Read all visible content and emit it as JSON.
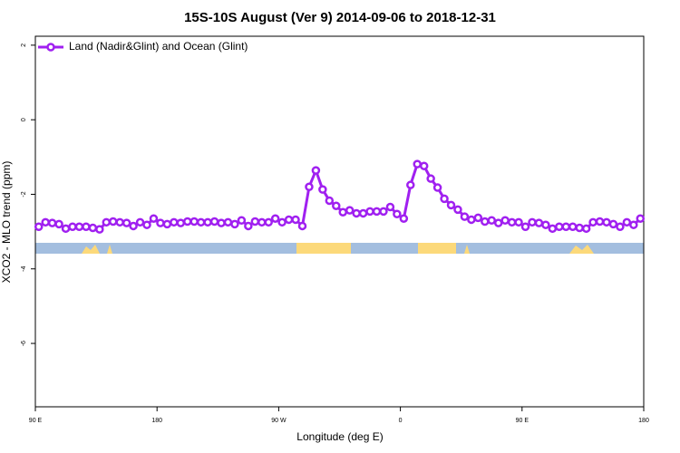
{
  "chart_data": {
    "type": "line",
    "title": "15S-10S August (Ver 9)   2014-09-06 to 2018-12-31",
    "x_label": "Longitude (deg E)",
    "y_label": "XCO2 - MLO trend (ppm)",
    "x": [
      92.5,
      97.5,
      102.5,
      107.5,
      112.5,
      117.5,
      122.5,
      127.5,
      132.5,
      137.5,
      142.5,
      147.5,
      152.5,
      157.5,
      162.5,
      167.5,
      172.5,
      177.5,
      182.5,
      187.5,
      192.5,
      197.5,
      202.5,
      207.5,
      212.5,
      217.5,
      222.5,
      227.5,
      232.5,
      237.5,
      242.5,
      247.5,
      252.5,
      257.5,
      262.5,
      267.5,
      272.5,
      277.5,
      282.5,
      287.5,
      292.5,
      297.5,
      302.5,
      307.5,
      312.5,
      317.5,
      322.5,
      327.5,
      332.5,
      337.5,
      342.5,
      347.5,
      352.5,
      357.5,
      362.5,
      367.5,
      372.5,
      377.5,
      382.5,
      387.5,
      392.5,
      397.5,
      402.5,
      407.5,
      412.5,
      417.5,
      422.5,
      427.5,
      432.5,
      437.5,
      442.5,
      447.5,
      452.5,
      457.5,
      462.5,
      467.5,
      472.5,
      477.5,
      482.5,
      487.5,
      492.5,
      497.5,
      502.5,
      507.5,
      512.5,
      517.5,
      522.5,
      527.5,
      532.5,
      537.5
    ],
    "series": [
      {
        "name": "Land (Nadir&Glint) and Ocean (Glint)",
        "color": "#a020f0",
        "values": [
          -2.87,
          -2.75,
          -2.77,
          -2.8,
          -2.92,
          -2.87,
          -2.87,
          -2.87,
          -2.9,
          -2.94,
          -2.75,
          -2.73,
          -2.75,
          -2.77,
          -2.85,
          -2.75,
          -2.82,
          -2.65,
          -2.77,
          -2.8,
          -2.75,
          -2.77,
          -2.73,
          -2.73,
          -2.75,
          -2.75,
          -2.73,
          -2.77,
          -2.75,
          -2.8,
          -2.7,
          -2.85,
          -2.73,
          -2.75,
          -2.75,
          -2.65,
          -2.75,
          -2.68,
          -2.68,
          -2.85,
          -1.8,
          -1.36,
          -1.87,
          -2.17,
          -2.31,
          -2.48,
          -2.43,
          -2.51,
          -2.51,
          -2.46,
          -2.46,
          -2.46,
          -2.34,
          -2.53,
          -2.65,
          -1.75,
          -1.19,
          -1.24,
          -1.58,
          -1.82,
          -2.12,
          -2.29,
          -2.41,
          -2.6,
          -2.68,
          -2.63,
          -2.73,
          -2.7,
          -2.77,
          -2.7,
          -2.75,
          -2.75,
          -2.87,
          -2.75,
          -2.77,
          -2.82,
          -2.92,
          -2.87,
          -2.87,
          -2.87,
          -2.9,
          -2.92,
          -2.75,
          -2.73,
          -2.75,
          -2.8,
          -2.87,
          -2.75,
          -2.82,
          -2.65
        ]
      }
    ],
    "xlim": [
      90,
      540
    ],
    "xticks": [
      {
        "value": 90,
        "label": "90 E"
      },
      180,
      {
        "value": 270,
        "label": "90 W"
      },
      {
        "value": 360,
        "label": "0"
      },
      {
        "value": 450,
        "label": "90 E"
      },
      {
        "value": 540,
        "label": "180"
      }
    ],
    "ylim": [
      -7.7,
      2.24
    ],
    "yticks": [
      2,
      0,
      -2,
      -4,
      -6
    ],
    "legend": "top-left"
  }
}
